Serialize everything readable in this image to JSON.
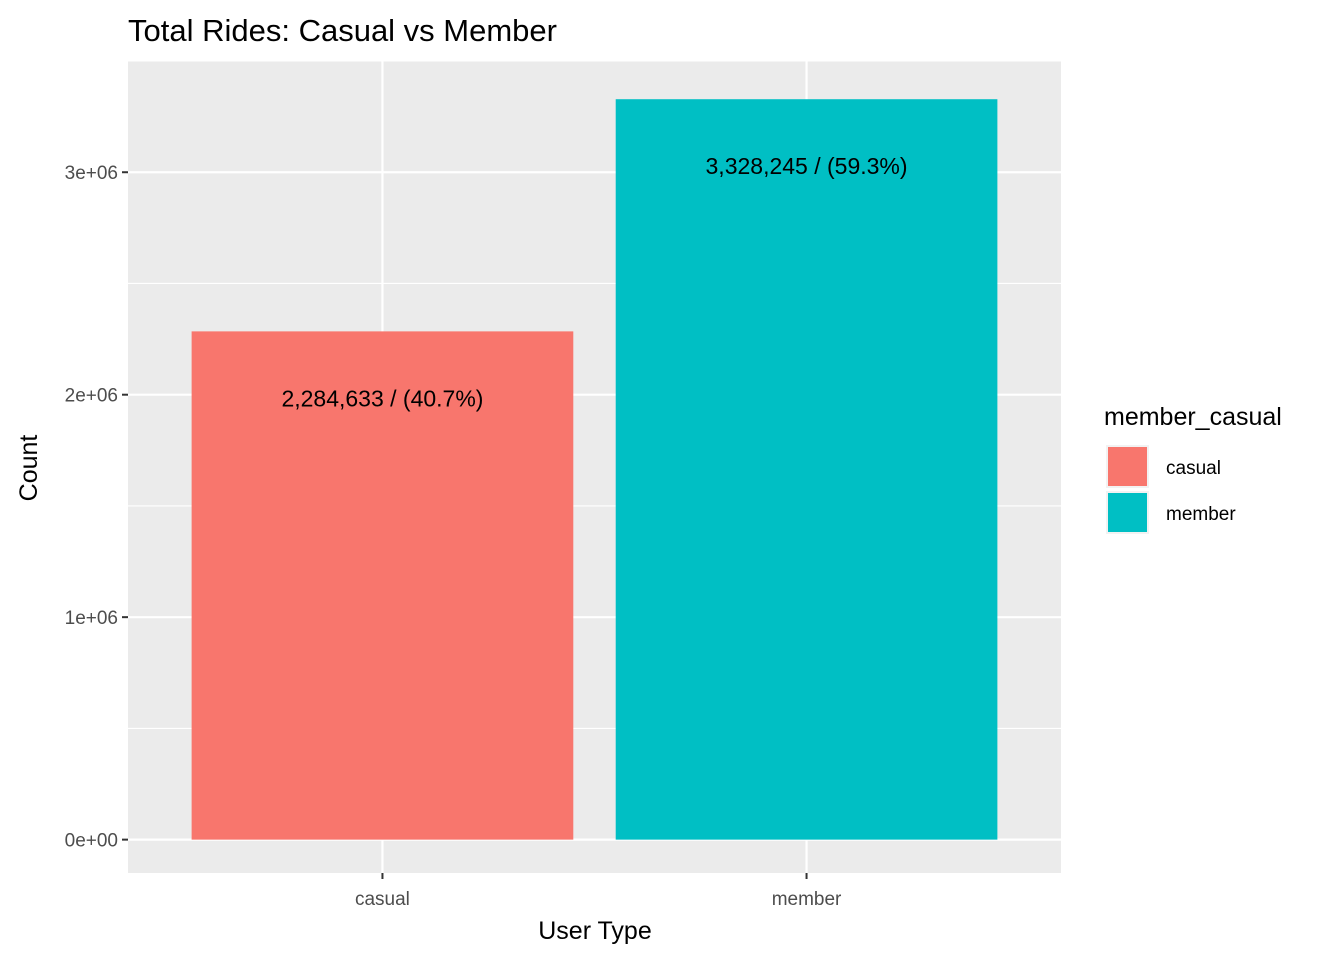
{
  "chart_data": {
    "type": "bar",
    "title": "Total Rides: Casual vs Member",
    "xlabel": "User Type",
    "ylabel": "Count",
    "categories": [
      "casual",
      "member"
    ],
    "values": [
      2284633,
      3328245
    ],
    "data_labels": [
      "2,284,633 / (40.7%)",
      "3,328,245 / (59.3%)"
    ],
    "colors": [
      "#F8766D",
      "#00BFC4"
    ],
    "ylim": [
      -150000,
      3500000
    ],
    "y_ticks": [
      0,
      1000000,
      2000000,
      3000000
    ],
    "y_tick_labels": [
      "0e+00",
      "1e+06",
      "2e+06",
      "3e+06"
    ],
    "grid": true,
    "panel_background": "#EBEBEB",
    "legend": {
      "title": "member_casual",
      "position": "right",
      "items": [
        {
          "label": "casual",
          "color": "#F8766D"
        },
        {
          "label": "member",
          "color": "#00BFC4"
        }
      ]
    }
  }
}
